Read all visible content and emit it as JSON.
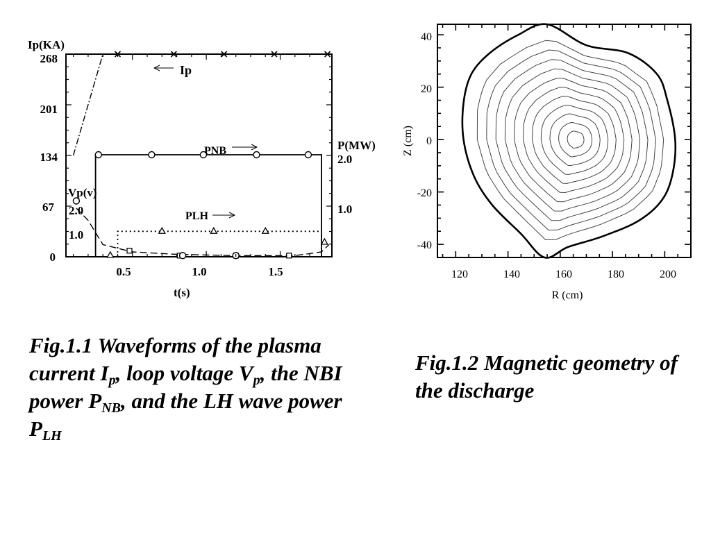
{
  "chart_data": [
    {
      "type": "line",
      "x_ticks": [
        "0.5",
        "1.0",
        "1.5"
      ],
      "xlabel": "t(s)",
      "y_left_label": "Ip(KA)",
      "y_left_ticks": [
        "268",
        "201",
        "134",
        "67",
        "0"
      ],
      "y_right_label": "P(MW)",
      "y_right_ticks": [
        "2.0",
        "1.0"
      ],
      "vp_label": "Vp(v)",
      "vp_ticks": [
        "2.0",
        "1.0"
      ],
      "xlim": [
        0.05,
        1.85
      ],
      "ylim": [
        0,
        268
      ],
      "series": [
        {
          "name": "Ip",
          "x": [
            0.1,
            0.3,
            0.45,
            0.8,
            1.1,
            1.45,
            1.82
          ],
          "values": [
            134,
            268,
            268,
            268,
            268,
            268,
            268
          ]
        },
        {
          "name": "PNB",
          "x": [
            0.2,
            0.25,
            0.25,
            1.78,
            1.78
          ],
          "values": [
            0,
            0,
            2.0,
            2.0,
            0
          ]
        },
        {
          "name": "PLH",
          "x": [
            0.4,
            0.4,
            1.78,
            1.78
          ],
          "values": [
            0,
            0.5,
            0.5,
            0
          ]
        },
        {
          "name": "Vp(v)",
          "x": [
            0.12,
            0.2,
            0.3,
            0.5,
            0.8,
            1.2,
            1.6,
            1.78,
            1.83
          ],
          "values": [
            2.0,
            1.5,
            0.5,
            0.2,
            0.1,
            0.05,
            0.05,
            0.2,
            0.5
          ]
        }
      ]
    },
    {
      "type": "contour",
      "xlabel": "R (cm)",
      "ylabel": "Z (cm)",
      "x_ticks": [
        "120",
        "140",
        "160",
        "180",
        "200"
      ],
      "y_ticks": [
        "40",
        "20",
        "0",
        "-20",
        "-40"
      ],
      "xlim": [
        113,
        210
      ],
      "ylim": [
        -45,
        44
      ],
      "magnetic_axis": [
        166,
        0
      ],
      "n_flux_surfaces": 11
    }
  ],
  "captions": {
    "fig1": {
      "p1": "Fig.1.1 Waveforms of the plasma current I",
      "s1": "p",
      "p2": ", loop voltage V",
      "s2": "p",
      "p3": ", the NBI power P",
      "s3": "NB",
      "p4": ", and the LH wave power P",
      "s4": "LH"
    },
    "fig2": "Fig.1.2 Magnetic geometry of the discharge"
  },
  "colors": {
    "ink": "#000000",
    "background": "#ffffff"
  }
}
